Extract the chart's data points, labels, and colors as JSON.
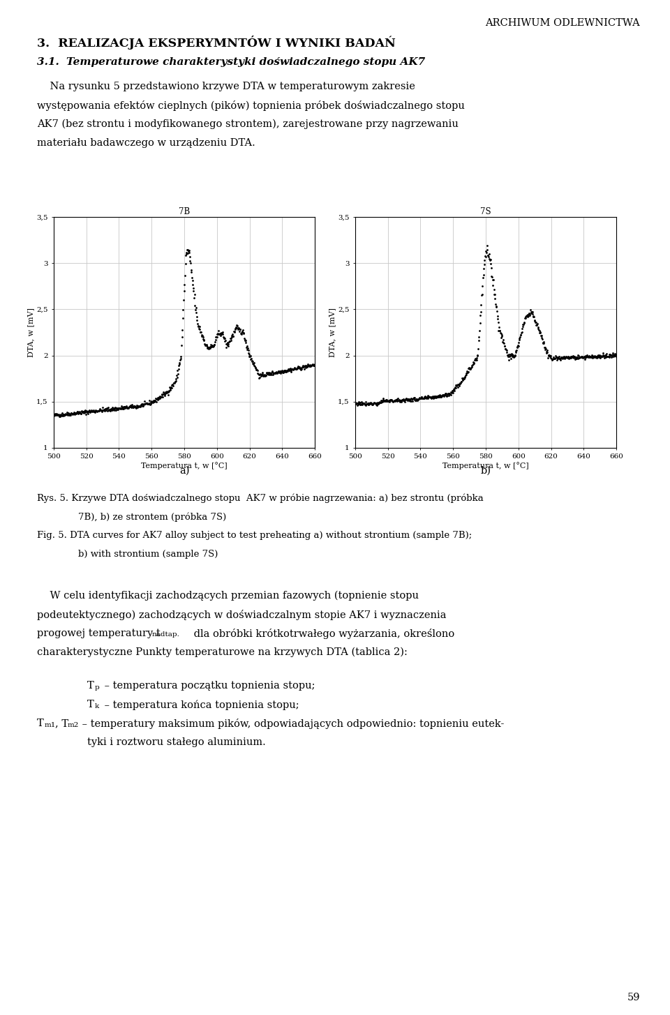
{
  "page_title": "ARCHIWUM ODLEWNICTWA",
  "section_title": "3.  REALIZACJA EKSPERYMNTÓW I WYNIKI BADAŃ",
  "subsection_title_prefix": "3.1. ",
  "subsection_title_body": "Temperaturowe charakterystyki doświadczalnego stopu AK7",
  "chart_a_title": "7B",
  "chart_b_title": "7S",
  "xlabel": "Temperatura t, w [°C]",
  "ylabel": "DTA, w [mV]",
  "xlim": [
    500,
    660
  ],
  "ylim": [
    1.0,
    3.5
  ],
  "yticks": [
    1.0,
    1.5,
    2.0,
    2.5,
    3.0,
    3.5
  ],
  "ytick_labels": [
    "1",
    "1,5",
    "2",
    "2,5",
    "3",
    "3,5"
  ],
  "xticks": [
    500,
    520,
    540,
    560,
    580,
    600,
    620,
    640,
    660
  ],
  "page_number": "59",
  "background_color": "#ffffff",
  "text_color": "#000000",
  "grid_color": "#c8c8c8",
  "dot_color": "#000000",
  "lh": 0.0185,
  "fs_body": 10.5,
  "fs_caption": 9.5,
  "fs_small": 8.5
}
